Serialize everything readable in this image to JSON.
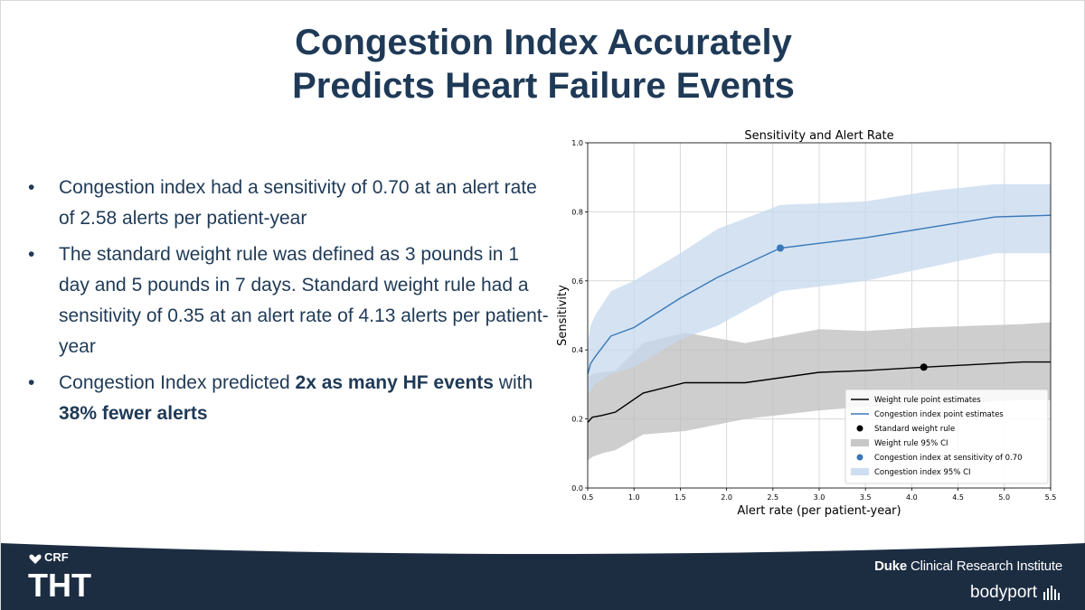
{
  "slide": {
    "title_line1": "Congestion Index Accurately",
    "title_line2": "Predicts Heart Failure Events",
    "bullets": [
      {
        "pre": "Congestion index had a sensitivity of 0.70 at an alert rate of 2.58 alerts per patient-year",
        "b1": "",
        "mid": "",
        "b2": ""
      },
      {
        "pre": "The standard weight rule was defined as 3 pounds in 1 day and 5 pounds in 7 days. Standard weight rule had a sensitivity of 0.35 at an alert rate of 4.13 alerts per patient-year",
        "b1": "",
        "mid": "",
        "b2": ""
      },
      {
        "pre": "Congestion Index predicted ",
        "b1": "2x as many HF events",
        "mid": " with ",
        "b2": "38% fewer alerts"
      }
    ]
  },
  "footer": {
    "crf_text": "CRF",
    "tht_text": "THT",
    "duke_bold": "Duke",
    "duke_rest": " Clinical Research Institute",
    "bodyport": "bodyport"
  },
  "colors": {
    "title": "#1f3a57",
    "footer_dark": "#1c2d42",
    "weight_line": "#000000",
    "congestion_line": "#3a78b8",
    "congestion_band": "#c5d8ee",
    "weight_band": "#bdbdbd"
  },
  "chart_data": {
    "type": "line",
    "title": "Sensitivity and Alert Rate",
    "xlabel": "Alert rate (per patient-year)",
    "ylabel": "Sensitivity",
    "xlim": [
      0.5,
      5.5
    ],
    "ylim": [
      0.0,
      1.0
    ],
    "xticks": [
      "0.5",
      "1.0",
      "1.5",
      "2.0",
      "2.5",
      "3.0",
      "3.5",
      "4.0",
      "4.5",
      "5.0",
      "5.5"
    ],
    "yticks": [
      "0.0",
      "0.2",
      "0.4",
      "0.6",
      "0.8",
      "1.0"
    ],
    "grid": true,
    "legend_position": "lower-right",
    "series": [
      {
        "name": "Weight rule point estimates",
        "kind": "line",
        "x": [
          0.5,
          0.55,
          0.65,
          0.8,
          1.1,
          1.55,
          2.2,
          3.0,
          3.5,
          4.13,
          5.2,
          5.5
        ],
        "y": [
          0.19,
          0.205,
          0.21,
          0.22,
          0.275,
          0.305,
          0.305,
          0.335,
          0.34,
          0.35,
          0.365,
          0.365
        ]
      },
      {
        "name": "Congestion index point estimates",
        "kind": "line",
        "x": [
          0.5,
          0.53,
          0.58,
          0.75,
          1.0,
          1.5,
          1.9,
          2.58,
          3.5,
          4.2,
          4.9,
          5.5
        ],
        "y": [
          0.33,
          0.36,
          0.38,
          0.44,
          0.465,
          0.55,
          0.61,
          0.695,
          0.725,
          0.755,
          0.785,
          0.79
        ]
      },
      {
        "name": "Standard weight rule",
        "kind": "point",
        "x": [
          4.13
        ],
        "y": [
          0.35
        ]
      },
      {
        "name": "Weight rule 95% CI",
        "kind": "band",
        "x": [
          0.5,
          0.55,
          0.65,
          0.8,
          1.1,
          1.55,
          2.2,
          3.0,
          3.5,
          4.13,
          5.2,
          5.5
        ],
        "lower": [
          0.08,
          0.09,
          0.1,
          0.11,
          0.155,
          0.165,
          0.2,
          0.225,
          0.235,
          0.24,
          0.255,
          0.255
        ],
        "upper": [
          0.32,
          0.33,
          0.335,
          0.34,
          0.42,
          0.45,
          0.42,
          0.46,
          0.455,
          0.465,
          0.475,
          0.48
        ]
      },
      {
        "name": "Congestion index at sensitivity of 0.70",
        "kind": "point",
        "x": [
          2.58
        ],
        "y": [
          0.695
        ]
      },
      {
        "name": "Congestion index 95% CI",
        "kind": "band",
        "x": [
          0.5,
          0.53,
          0.58,
          0.75,
          1.0,
          1.5,
          1.9,
          2.58,
          3.5,
          4.2,
          4.9,
          5.5
        ],
        "lower": [
          0.27,
          0.28,
          0.3,
          0.33,
          0.35,
          0.43,
          0.47,
          0.57,
          0.6,
          0.64,
          0.68,
          0.68
        ],
        "upper": [
          0.42,
          0.47,
          0.5,
          0.57,
          0.6,
          0.68,
          0.75,
          0.82,
          0.83,
          0.86,
          0.88,
          0.88
        ]
      }
    ]
  }
}
